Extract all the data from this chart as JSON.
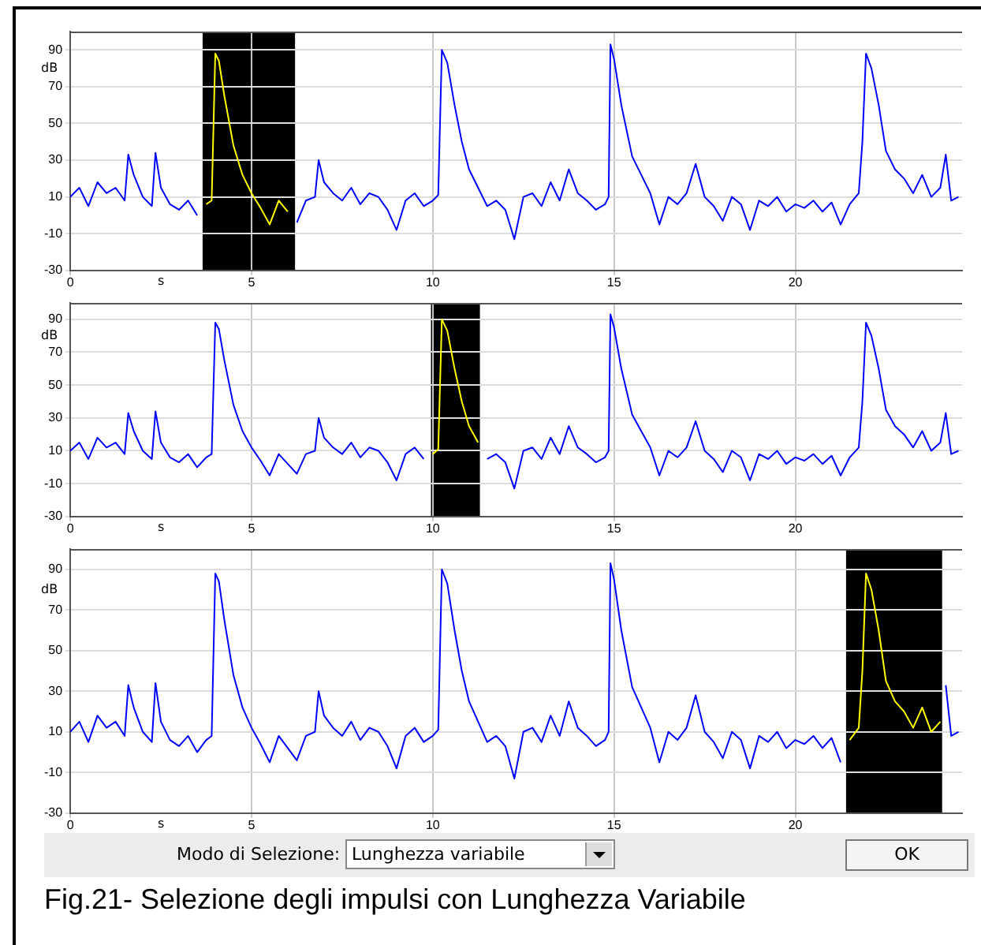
{
  "chart_data": [
    {
      "type": "line",
      "xlabel": "s",
      "ylabel": "dB",
      "xlim": [
        0,
        24.6
      ],
      "ylim": [
        -30,
        100
      ],
      "xticks": [
        0,
        5,
        10,
        15,
        20
      ],
      "yticks": [
        -30,
        -10,
        10,
        30,
        50,
        70,
        90
      ],
      "grid": true,
      "legend": false,
      "marker": "none",
      "x": [
        0,
        0.25,
        0.5,
        0.75,
        1,
        1.25,
        1.5,
        1.6,
        1.75,
        2,
        2.25,
        2.35,
        2.5,
        2.75,
        3,
        3.25,
        3.5,
        3.75,
        3.9,
        4,
        4.1,
        4.25,
        4.5,
        4.75,
        5,
        5.25,
        5.5,
        5.75,
        6,
        6.25,
        6.5,
        6.75,
        6.85,
        7,
        7.25,
        7.5,
        7.75,
        8,
        8.25,
        8.5,
        8.75,
        9,
        9.25,
        9.5,
        9.75,
        10,
        10.15,
        10.25,
        10.4,
        10.6,
        10.8,
        11,
        11.25,
        11.5,
        11.75,
        12,
        12.25,
        12.5,
        12.75,
        13,
        13.25,
        13.5,
        13.75,
        14,
        14.25,
        14.5,
        14.75,
        14.85,
        14.9,
        15,
        15.2,
        15.5,
        15.75,
        16,
        16.25,
        16.5,
        16.75,
        17,
        17.25,
        17.5,
        17.75,
        18,
        18.25,
        18.5,
        18.75,
        19,
        19.25,
        19.5,
        19.75,
        20,
        20.25,
        20.5,
        20.75,
        21,
        21.25,
        21.5,
        21.75,
        21.85,
        21.95,
        22.1,
        22.3,
        22.5,
        22.75,
        23,
        23.25,
        23.5,
        23.75,
        24,
        24.15,
        24.3,
        24.5
      ],
      "series": [
        {
          "color": "#0000ff",
          "values": [
            10,
            15,
            5,
            18,
            12,
            15,
            8,
            33,
            22,
            10,
            5,
            34,
            15,
            6,
            3,
            8,
            0,
            null,
            null,
            null,
            null,
            null,
            null,
            null,
            null,
            null,
            null,
            null,
            null,
            -4,
            8,
            10,
            30,
            18,
            12,
            8,
            15,
            6,
            12,
            10,
            3,
            -8,
            8,
            12,
            5,
            8,
            11,
            90,
            83,
            60,
            40,
            25,
            15,
            5,
            8,
            3,
            -13,
            10,
            12,
            5,
            18,
            8,
            25,
            12,
            8,
            3,
            6,
            10,
            93,
            85,
            60,
            32,
            22,
            12,
            -5,
            10,
            6,
            12,
            28,
            10,
            5,
            -3,
            10,
            6,
            -8,
            8,
            5,
            10,
            2,
            6,
            4,
            8,
            2,
            7,
            -5,
            6,
            12,
            40,
            88,
            80,
            60,
            35,
            25,
            20,
            12,
            22,
            10,
            15,
            33,
            8,
            10
          ]
        },
        {
          "color": "#ffff00",
          "x": [
            3.75,
            3.9,
            4,
            4.1,
            4.25,
            4.5,
            4.75,
            5,
            5.25,
            5.5,
            5.75,
            6
          ],
          "values": [
            6,
            8,
            88,
            84,
            65,
            38,
            22,
            12,
            4,
            -5,
            8,
            2
          ]
        }
      ],
      "bands": [
        {
          "axis": "x",
          "from": 3.65,
          "to": 6.2,
          "color": "#000000"
        }
      ]
    },
    {
      "type": "line",
      "xlabel": "s",
      "ylabel": "dB",
      "xlim": [
        0,
        24.6
      ],
      "ylim": [
        -30,
        100
      ],
      "xticks": [
        0,
        5,
        10,
        15,
        20
      ],
      "yticks": [
        -30,
        -10,
        10,
        30,
        50,
        70,
        90
      ],
      "grid": true,
      "legend": false,
      "marker": "none",
      "x": [
        0,
        0.25,
        0.5,
        0.75,
        1,
        1.25,
        1.5,
        1.6,
        1.75,
        2,
        2.25,
        2.35,
        2.5,
        2.75,
        3,
        3.25,
        3.5,
        3.75,
        3.9,
        4,
        4.1,
        4.25,
        4.5,
        4.75,
        5,
        5.25,
        5.5,
        5.75,
        6,
        6.25,
        6.5,
        6.75,
        6.85,
        7,
        7.25,
        7.5,
        7.75,
        8,
        8.25,
        8.5,
        8.75,
        9,
        9.25,
        9.5,
        9.75,
        10,
        10.15,
        10.25,
        10.4,
        10.6,
        10.8,
        11,
        11.25,
        11.5,
        11.75,
        12,
        12.25,
        12.5,
        12.75,
        13,
        13.25,
        13.5,
        13.75,
        14,
        14.25,
        14.5,
        14.75,
        14.85,
        14.9,
        15,
        15.2,
        15.5,
        15.75,
        16,
        16.25,
        16.5,
        16.75,
        17,
        17.25,
        17.5,
        17.75,
        18,
        18.25,
        18.5,
        18.75,
        19,
        19.25,
        19.5,
        19.75,
        20,
        20.25,
        20.5,
        20.75,
        21,
        21.25,
        21.5,
        21.75,
        21.85,
        21.95,
        22.1,
        22.3,
        22.5,
        22.75,
        23,
        23.25,
        23.5,
        23.75,
        24,
        24.15,
        24.3,
        24.5
      ],
      "series": [
        {
          "color": "#0000ff",
          "values": [
            10,
            15,
            5,
            18,
            12,
            15,
            8,
            33,
            22,
            10,
            5,
            34,
            15,
            6,
            3,
            8,
            0,
            6,
            8,
            88,
            84,
            65,
            38,
            22,
            12,
            4,
            -5,
            8,
            2,
            -4,
            8,
            10,
            30,
            18,
            12,
            8,
            15,
            6,
            12,
            10,
            3,
            -8,
            8,
            12,
            5,
            null,
            null,
            null,
            null,
            null,
            null,
            null,
            null,
            5,
            8,
            3,
            -13,
            10,
            12,
            5,
            18,
            8,
            25,
            12,
            8,
            3,
            6,
            10,
            93,
            85,
            60,
            32,
            22,
            12,
            -5,
            10,
            6,
            12,
            28,
            10,
            5,
            -3,
            10,
            6,
            -8,
            8,
            5,
            10,
            2,
            6,
            4,
            8,
            2,
            7,
            -5,
            6,
            12,
            40,
            88,
            80,
            60,
            35,
            25,
            20,
            12,
            22,
            10,
            15,
            33,
            8,
            10
          ]
        },
        {
          "color": "#ffff00",
          "x": [
            10,
            10.15,
            10.25,
            10.4,
            10.6,
            10.8,
            11,
            11.25
          ],
          "values": [
            8,
            11,
            90,
            83,
            60,
            40,
            25,
            15
          ]
        }
      ],
      "bands": [
        {
          "axis": "x",
          "from": 9.95,
          "to": 11.3,
          "color": "#000000"
        }
      ]
    },
    {
      "type": "line",
      "xlabel": "s",
      "ylabel": "dB",
      "xlim": [
        0,
        24.6
      ],
      "ylim": [
        -30,
        100
      ],
      "xticks": [
        0,
        5,
        10,
        15,
        20
      ],
      "yticks": [
        -30,
        -10,
        10,
        30,
        50,
        70,
        90
      ],
      "grid": true,
      "legend": false,
      "marker": "none",
      "x": [
        0,
        0.25,
        0.5,
        0.75,
        1,
        1.25,
        1.5,
        1.6,
        1.75,
        2,
        2.25,
        2.35,
        2.5,
        2.75,
        3,
        3.25,
        3.5,
        3.75,
        3.9,
        4,
        4.1,
        4.25,
        4.5,
        4.75,
        5,
        5.25,
        5.5,
        5.75,
        6,
        6.25,
        6.5,
        6.75,
        6.85,
        7,
        7.25,
        7.5,
        7.75,
        8,
        8.25,
        8.5,
        8.75,
        9,
        9.25,
        9.5,
        9.75,
        10,
        10.15,
        10.25,
        10.4,
        10.6,
        10.8,
        11,
        11.25,
        11.5,
        11.75,
        12,
        12.25,
        12.5,
        12.75,
        13,
        13.25,
        13.5,
        13.75,
        14,
        14.25,
        14.5,
        14.75,
        14.85,
        14.9,
        15,
        15.2,
        15.5,
        15.75,
        16,
        16.25,
        16.5,
        16.75,
        17,
        17.25,
        17.5,
        17.75,
        18,
        18.25,
        18.5,
        18.75,
        19,
        19.25,
        19.5,
        19.75,
        20,
        20.25,
        20.5,
        20.75,
        21,
        21.25,
        21.5,
        21.75,
        21.85,
        21.95,
        22.1,
        22.3,
        22.5,
        22.75,
        23,
        23.25,
        23.5,
        23.75,
        24,
        24.15,
        24.3,
        24.5
      ],
      "series": [
        {
          "color": "#0000ff",
          "values": [
            10,
            15,
            5,
            18,
            12,
            15,
            8,
            33,
            22,
            10,
            5,
            34,
            15,
            6,
            3,
            8,
            0,
            6,
            8,
            88,
            84,
            65,
            38,
            22,
            12,
            4,
            -5,
            8,
            2,
            -4,
            8,
            10,
            30,
            18,
            12,
            8,
            15,
            6,
            12,
            10,
            3,
            -8,
            8,
            12,
            5,
            8,
            11,
            90,
            83,
            60,
            40,
            25,
            15,
            5,
            8,
            3,
            -13,
            10,
            12,
            5,
            18,
            8,
            25,
            12,
            8,
            3,
            6,
            10,
            93,
            85,
            60,
            32,
            22,
            12,
            -5,
            10,
            6,
            12,
            28,
            10,
            5,
            -3,
            10,
            6,
            -8,
            8,
            5,
            10,
            2,
            6,
            4,
            8,
            2,
            7,
            -5,
            null,
            null,
            null,
            null,
            null,
            null,
            null,
            null,
            null,
            null,
            null,
            null,
            null,
            33,
            8,
            10
          ]
        },
        {
          "color": "#ffff00",
          "x": [
            21.5,
            21.75,
            21.85,
            21.95,
            22.1,
            22.3,
            22.5,
            22.75,
            23,
            23.25,
            23.5,
            23.75,
            24
          ],
          "values": [
            6,
            12,
            40,
            88,
            80,
            60,
            35,
            25,
            20,
            12,
            22,
            10,
            15
          ]
        }
      ],
      "bands": [
        {
          "axis": "x",
          "from": 21.4,
          "to": 24.05,
          "color": "#000000"
        }
      ],
      "annotations": [
        "Modo di Selezione:",
        "Lunghezza variabile",
        "OK",
        "Fig.21- Selezione degli impulsi con Lunghezza Variabile"
      ]
    }
  ]
}
